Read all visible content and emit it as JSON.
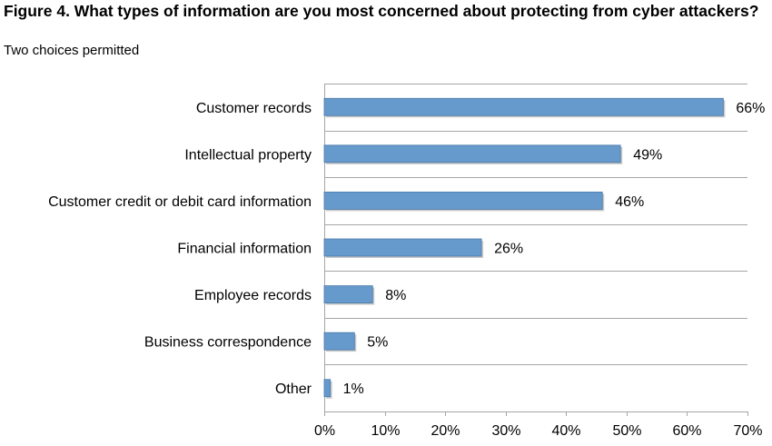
{
  "figure": {
    "title": "Figure 4. What types of information are you most concerned about protecting from cyber attackers?",
    "subtitle": "Two choices permitted"
  },
  "chart_data": {
    "type": "bar",
    "orientation": "horizontal",
    "categories": [
      "Customer records",
      "Intellectual property",
      "Customer credit or debit card information",
      "Financial information",
      "Employee records",
      "Business correspondence",
      "Other"
    ],
    "values": [
      66,
      49,
      46,
      26,
      8,
      5,
      1
    ],
    "value_labels": [
      "66%",
      "49%",
      "46%",
      "26%",
      "8%",
      "5%",
      "1%"
    ],
    "xlim": [
      0,
      70
    ],
    "xticks": [
      0,
      10,
      20,
      30,
      40,
      50,
      60,
      70
    ],
    "xtick_labels": [
      "0%",
      "10%",
      "20%",
      "30%",
      "40%",
      "50%",
      "60%",
      "70%"
    ],
    "grid": true,
    "colors": {
      "bar": "#6699cc",
      "bar_edge": "#4a7aa8",
      "grid": "#a6a6a6",
      "shadow": "#c9c9c9"
    }
  }
}
